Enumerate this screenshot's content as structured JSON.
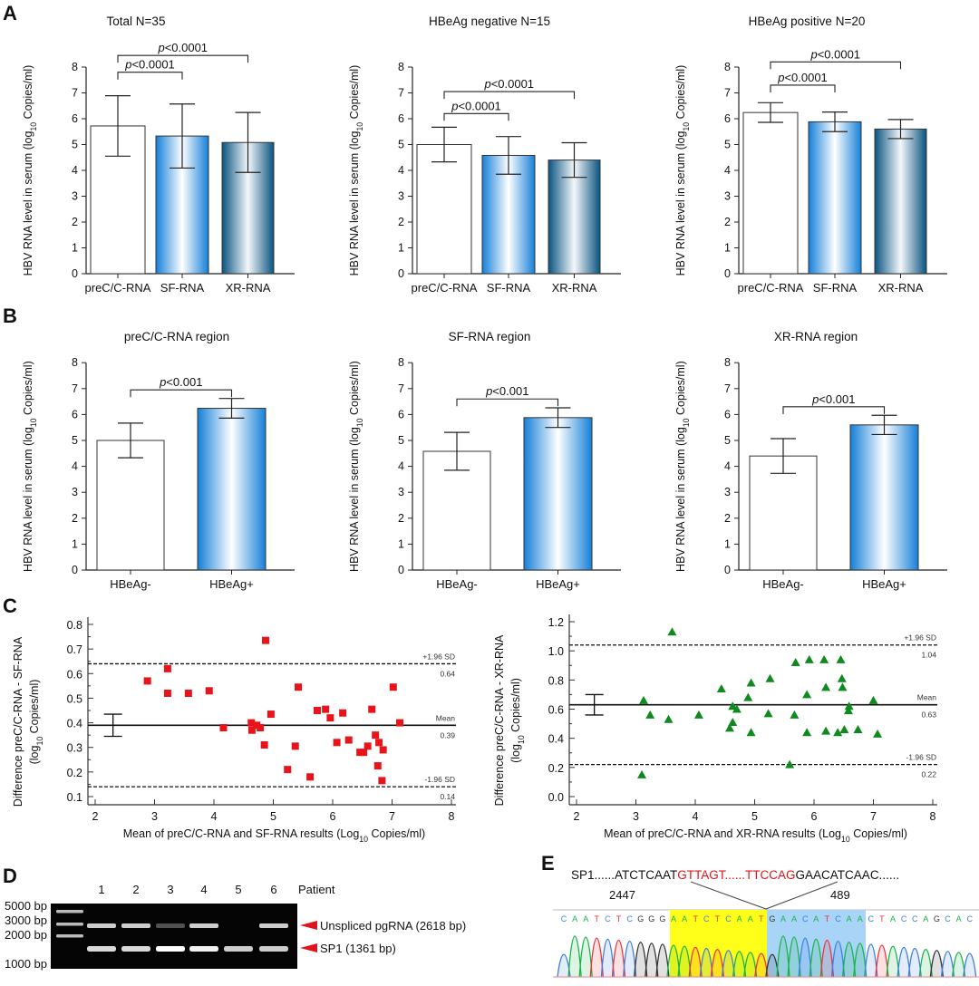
{
  "panel_letters": [
    "A",
    "B",
    "C",
    "D",
    "E"
  ],
  "y_axis_label": {
    "pre": "HBV  RNA level in serum (log",
    "sub": "10",
    "post": " Copies/ml)"
  },
  "colors": {
    "sf_bar": "#1b8fe0",
    "xr_bar": "#0c5b88",
    "scatter_c1": "#e8141b",
    "scatter_c2": "#0f8a1f",
    "splice_red": "#e0141b"
  },
  "chart_data": [
    {
      "id": "A1",
      "type": "bar",
      "title": "Total N=35",
      "categories": [
        "preC/C-RNA",
        "SF-RNA",
        "XR-RNA"
      ],
      "values": [
        5.72,
        5.33,
        5.08
      ],
      "errors": [
        1.17,
        1.24,
        1.16
      ],
      "ylim": [
        0,
        8
      ],
      "yticks": [
        "0",
        "1",
        "2",
        "3",
        "4",
        "5",
        "6",
        "7",
        "8"
      ],
      "comparisons": [
        {
          "from": 0,
          "to": 1,
          "level": 7.8,
          "p": "<0.0001"
        },
        {
          "from": 0,
          "to": 2,
          "level": 8.45,
          "p": "<0.0001"
        }
      ]
    },
    {
      "id": "A2",
      "type": "bar",
      "title": "HBeAg  negative N=15",
      "categories": [
        "preC/C-RNA",
        "SF-RNA",
        "XR-RNA"
      ],
      "values": [
        5.0,
        4.58,
        4.4
      ],
      "errors": [
        0.67,
        0.73,
        0.67
      ],
      "ylim": [
        0,
        8
      ],
      "yticks": [
        "0",
        "1",
        "2",
        "3",
        "4",
        "5",
        "6",
        "7",
        "8"
      ],
      "comparisons": [
        {
          "from": 0,
          "to": 1,
          "level": 6.2,
          "p": "<0.0001"
        },
        {
          "from": 0,
          "to": 2,
          "level": 7.05,
          "p": "<0.0001"
        }
      ]
    },
    {
      "id": "A3",
      "type": "bar",
      "title": "HBeAg  positive N=20",
      "categories": [
        "preC/C-RNA",
        "SF-RNA",
        "XR-RNA"
      ],
      "values": [
        6.24,
        5.88,
        5.6
      ],
      "errors": [
        0.38,
        0.38,
        0.37
      ],
      "ylim": [
        0,
        8
      ],
      "yticks": [
        "0",
        "1",
        "2",
        "3",
        "4",
        "5",
        "6",
        "7",
        "8"
      ],
      "comparisons": [
        {
          "from": 0,
          "to": 1,
          "level": 7.3,
          "p": "<0.0001"
        },
        {
          "from": 0,
          "to": 2,
          "level": 8.2,
          "p": "<0.0001"
        }
      ]
    },
    {
      "id": "B1",
      "type": "bar",
      "title": "preC/C-RNA region",
      "categories": [
        "HBeAg-",
        "HBeAg+"
      ],
      "values": [
        5.0,
        6.24
      ],
      "errors": [
        0.67,
        0.38
      ],
      "ylim": [
        0,
        8
      ],
      "yticks": [
        "0",
        "1",
        "2",
        "3",
        "4",
        "5",
        "6",
        "7",
        "8"
      ],
      "comparisons": [
        {
          "from": 0,
          "to": 1,
          "level": 6.95,
          "p": "<0.001"
        }
      ]
    },
    {
      "id": "B2",
      "type": "bar",
      "title": "SF-RNA region",
      "categories": [
        "HBeAg-",
        "HBeAg+"
      ],
      "values": [
        4.58,
        5.88
      ],
      "errors": [
        0.73,
        0.38
      ],
      "ylim": [
        0,
        8
      ],
      "yticks": [
        "0",
        "1",
        "2",
        "3",
        "4",
        "5",
        "6",
        "7",
        "8"
      ],
      "comparisons": [
        {
          "from": 0,
          "to": 1,
          "level": 6.6,
          "p": "<0.001"
        }
      ]
    },
    {
      "id": "B3",
      "type": "bar",
      "title": "XR-RNA region",
      "categories": [
        "HBeAg-",
        "HBeAg+"
      ],
      "values": [
        4.4,
        5.6
      ],
      "errors": [
        0.67,
        0.37
      ],
      "ylim": [
        0,
        8
      ],
      "yticks": [
        "0",
        "1",
        "2",
        "3",
        "4",
        "5",
        "6",
        "7",
        "8"
      ],
      "comparisons": [
        {
          "from": 0,
          "to": 1,
          "level": 6.3,
          "p": "<0.001"
        }
      ]
    },
    {
      "id": "C1",
      "type": "scatter",
      "marker": "square",
      "ylabel_line1": "Difference preC/C-RNA - SF-RNA",
      "ylabel_line2_pre": "(log",
      "ylabel_line2_sub": "10",
      "ylabel_line2_post": " Copies/ml)",
      "xlabel_pre": "Mean of preC/C-RNA and SF-RNA results (Log",
      "xlabel_sub": "10",
      "xlabel_post": " Copies/ml)",
      "xlim": [
        2,
        8
      ],
      "ylim": [
        0.1,
        0.8
      ],
      "xticks": [
        "2",
        "3",
        "4",
        "5",
        "6",
        "7",
        "8"
      ],
      "yticks": [
        "0.1",
        "0.2",
        "0.3",
        "0.4",
        "0.5",
        "0.6",
        "0.7",
        "0.8"
      ],
      "mean": {
        "label": "Mean",
        "value": 0.39,
        "value_label": "0.39",
        "ci": [
          0.345,
          0.435
        ]
      },
      "upper": {
        "label": "+1.96 SD",
        "value": 0.64,
        "value_label": "0.64"
      },
      "lower": {
        "label": "-1.96 SD",
        "value": 0.14,
        "value_label": "0.14"
      },
      "points": [
        [
          2.88,
          0.57
        ],
        [
          3.22,
          0.62
        ],
        [
          3.22,
          0.52
        ],
        [
          3.57,
          0.52
        ],
        [
          3.92,
          0.53
        ],
        [
          4.16,
          0.38
        ],
        [
          4.63,
          0.4
        ],
        [
          4.64,
          0.37
        ],
        [
          4.72,
          0.39
        ],
        [
          4.78,
          0.38
        ],
        [
          4.85,
          0.31
        ],
        [
          4.87,
          0.735
        ],
        [
          4.96,
          0.435
        ],
        [
          5.24,
          0.21
        ],
        [
          5.37,
          0.305
        ],
        [
          5.42,
          0.545
        ],
        [
          5.62,
          0.18
        ],
        [
          5.74,
          0.45
        ],
        [
          5.88,
          0.455
        ],
        [
          5.96,
          0.42
        ],
        [
          6.07,
          0.32
        ],
        [
          6.17,
          0.44
        ],
        [
          6.27,
          0.33
        ],
        [
          6.46,
          0.28
        ],
        [
          6.52,
          0.28
        ],
        [
          6.59,
          0.305
        ],
        [
          6.66,
          0.455
        ],
        [
          6.72,
          0.35
        ],
        [
          6.76,
          0.225
        ],
        [
          6.78,
          0.32
        ],
        [
          6.83,
          0.165
        ],
        [
          6.85,
          0.29
        ],
        [
          7.02,
          0.545
        ],
        [
          7.13,
          0.4
        ]
      ]
    },
    {
      "id": "C2",
      "type": "scatter",
      "marker": "triangle",
      "ylabel_line1": "Difference preC/C-RNA - XR-RNA",
      "ylabel_line2_pre": "(log",
      "ylabel_line2_sub": "10",
      "ylabel_line2_post": " Copies/ml)",
      "xlabel_pre": "Mean of preC/C-RNA and XR-RNA results (Log",
      "xlabel_sub": "10",
      "xlabel_post": " Copies/ml)",
      "xlim": [
        2,
        8
      ],
      "ylim": [
        0,
        1.2
      ],
      "xticks": [
        "2",
        "3",
        "4",
        "5",
        "6",
        "7",
        "8"
      ],
      "yticks": [
        "0.0",
        "0.2",
        "0.4",
        "0.6",
        "0.8",
        "1.0",
        "1.2"
      ],
      "mean": {
        "label": "Mean",
        "value": 0.63,
        "value_label": "0.63",
        "ci": [
          0.56,
          0.7
        ]
      },
      "upper": {
        "label": "+1.96 SD",
        "value": 1.04,
        "value_label": "1.04"
      },
      "lower": {
        "label": "-1.96 SD",
        "value": 0.22,
        "value_label": "0.22"
      },
      "points": [
        [
          3.1,
          0.15
        ],
        [
          3.13,
          0.66
        ],
        [
          3.24,
          0.56
        ],
        [
          3.55,
          0.53
        ],
        [
          3.61,
          1.13
        ],
        [
          4.06,
          0.56
        ],
        [
          4.44,
          0.74
        ],
        [
          4.58,
          0.47
        ],
        [
          4.63,
          0.51
        ],
        [
          4.63,
          0.62
        ],
        [
          4.7,
          0.6
        ],
        [
          4.89,
          0.68
        ],
        [
          4.94,
          0.44
        ],
        [
          4.94,
          0.78
        ],
        [
          5.23,
          0.57
        ],
        [
          5.26,
          0.81
        ],
        [
          5.59,
          0.22
        ],
        [
          5.67,
          0.56
        ],
        [
          5.69,
          0.92
        ],
        [
          5.88,
          0.44
        ],
        [
          5.88,
          0.7
        ],
        [
          5.92,
          0.94
        ],
        [
          6.17,
          0.94
        ],
        [
          6.2,
          0.45
        ],
        [
          6.2,
          0.75
        ],
        [
          6.4,
          0.44
        ],
        [
          6.45,
          0.94
        ],
        [
          6.47,
          0.81
        ],
        [
          6.48,
          0.75
        ],
        [
          6.51,
          0.46
        ],
        [
          6.58,
          0.59
        ],
        [
          6.59,
          0.62
        ],
        [
          6.74,
          0.46
        ],
        [
          7.0,
          0.66
        ],
        [
          7.07,
          0.43
        ]
      ]
    }
  ],
  "gel": {
    "lanes": [
      "1",
      "2",
      "3",
      "4",
      "5",
      "6"
    ],
    "lanes_title": "Patient",
    "markers": [
      "5000 bp",
      "3000 bp",
      "2000 bp",
      "1000 bp"
    ],
    "upper_band_intensity": [
      0.8,
      0.8,
      0.3,
      0.8,
      0,
      0.8
    ],
    "lower_band_intensity": [
      0.85,
      0.85,
      1,
      0.95,
      0.8,
      0.8
    ],
    "band_labels": [
      "Unspliced pgRNA (2618 bp)",
      "SP1 (1361 bp)"
    ]
  },
  "sequence": {
    "name": "SP1",
    "seq_left": "......ATCTCAAT",
    "seq_red": "GTTAGT......TTCCAG",
    "seq_right": "GAACATCAAC......",
    "pos_left": "2447",
    "pos_right": "489",
    "bases_pre": "CAATCTCGGG",
    "bases_yellow": "AATCTCAAT",
    "bases_blue": "GAACATCAA",
    "bases_post": "CTACCAGCAC"
  }
}
